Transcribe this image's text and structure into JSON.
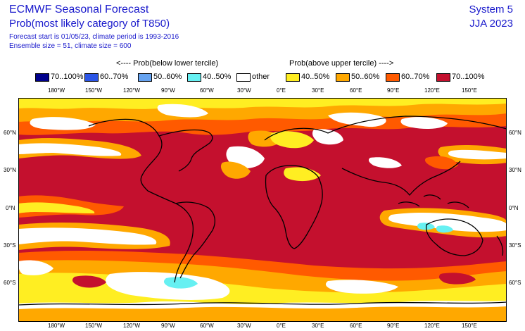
{
  "header": {
    "title": "ECMWF Seasonal Forecast",
    "subtitle": "Prob(most likely category of T850)",
    "info_line1": "Forecast start is 01/05/23, climate period is 1993-2016",
    "info_line2": "Ensemble size = 51, climate size = 600",
    "system": "System 5",
    "season": "JJA 2023"
  },
  "legend": {
    "below_label": "<---- Prob(below lower tercile)",
    "above_label": "Prob(above upper tercile) ---->",
    "items": [
      {
        "label": "70..100%",
        "color": "#00008c"
      },
      {
        "label": "60..70%",
        "color": "#2b55e6"
      },
      {
        "label": "50..60%",
        "color": "#66a3f0"
      },
      {
        "label": "40..50%",
        "color": "#66f0f2"
      },
      {
        "label": "other",
        "color": "#ffffff"
      },
      {
        "label": "40..50%",
        "color": "#ffee22"
      },
      {
        "label": "50..60%",
        "color": "#ffa800"
      },
      {
        "label": "60..70%",
        "color": "#ff5a00"
      },
      {
        "label": "70..100%",
        "color": "#c4102e"
      }
    ]
  },
  "axes": {
    "lon_ticks": [
      "180°W",
      "150°W",
      "120°W",
      "90°W",
      "60°W",
      "30°W",
      "0°E",
      "30°E",
      "60°E",
      "90°E",
      "120°E",
      "150°E"
    ],
    "lat_ticks": [
      "60°N",
      "30°N",
      "0°N",
      "30°S",
      "60°S"
    ]
  },
  "colors": {
    "c70": "#c4102e",
    "c60": "#ff5a00",
    "c50": "#ffa800",
    "c40": "#ffee22",
    "cold40": "#66f0f2",
    "coast": "#000000"
  }
}
